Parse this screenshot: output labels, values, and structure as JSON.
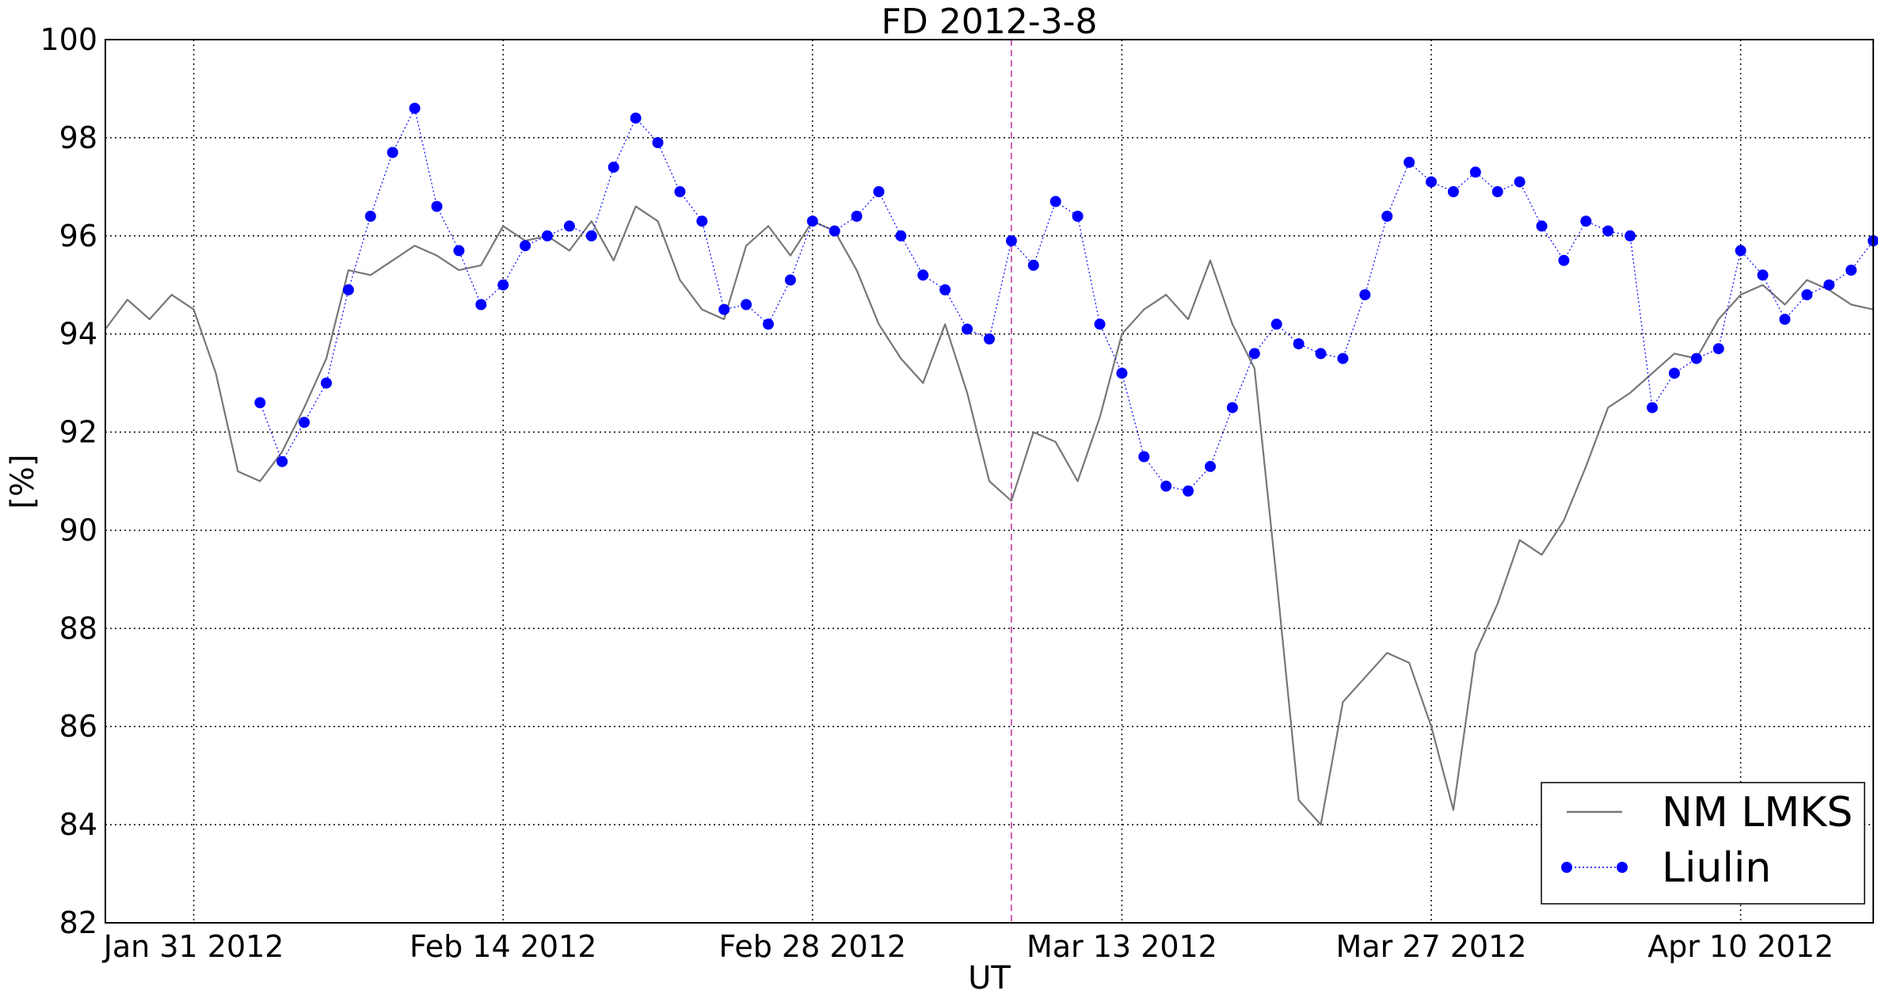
{
  "chart_data": {
    "type": "line",
    "title": "FD 2012-3-8",
    "xlabel": "UT",
    "ylabel": "[%]",
    "x_range": [
      "2012-01-27",
      "2012-04-16"
    ],
    "ylim": [
      82,
      100
    ],
    "yticks": [
      82,
      84,
      86,
      88,
      90,
      92,
      94,
      96,
      98,
      100
    ],
    "xticks": [
      {
        "date": "2012-01-31",
        "label": "Jan 31 2012"
      },
      {
        "date": "2012-02-14",
        "label": "Feb 14 2012"
      },
      {
        "date": "2012-02-28",
        "label": "Feb 28 2012"
      },
      {
        "date": "2012-03-13",
        "label": "Mar 13 2012"
      },
      {
        "date": "2012-03-27",
        "label": "Mar 27 2012"
      },
      {
        "date": "2012-04-10",
        "label": "Apr 10 2012"
      }
    ],
    "grid": true,
    "legend_position": "bottom-right",
    "event_marker": {
      "date": "2012-03-08",
      "color": "#c030a0"
    },
    "series": [
      {
        "name": "NM LMKS",
        "style": "solid-line",
        "color": "#777777",
        "points": [
          [
            "2012-01-27",
            94.1
          ],
          [
            "2012-01-28",
            94.7
          ],
          [
            "2012-01-29",
            94.3
          ],
          [
            "2012-01-30",
            94.8
          ],
          [
            "2012-01-31",
            94.5
          ],
          [
            "2012-02-01",
            93.2
          ],
          [
            "2012-02-02",
            91.2
          ],
          [
            "2012-02-03",
            91.0
          ],
          [
            "2012-02-04",
            91.6
          ],
          [
            "2012-02-05",
            92.5
          ],
          [
            "2012-02-06",
            93.5
          ],
          [
            "2012-02-07",
            95.3
          ],
          [
            "2012-02-08",
            95.2
          ],
          [
            "2012-02-09",
            95.5
          ],
          [
            "2012-02-10",
            95.8
          ],
          [
            "2012-02-11",
            95.6
          ],
          [
            "2012-02-12",
            95.3
          ],
          [
            "2012-02-13",
            95.4
          ],
          [
            "2012-02-14",
            96.2
          ],
          [
            "2012-02-15",
            95.9
          ],
          [
            "2012-02-16",
            96.0
          ],
          [
            "2012-02-17",
            95.7
          ],
          [
            "2012-02-18",
            96.3
          ],
          [
            "2012-02-19",
            95.5
          ],
          [
            "2012-02-20",
            96.6
          ],
          [
            "2012-02-21",
            96.3
          ],
          [
            "2012-02-22",
            95.1
          ],
          [
            "2012-02-23",
            94.5
          ],
          [
            "2012-02-24",
            94.3
          ],
          [
            "2012-02-25",
            95.8
          ],
          [
            "2012-02-26",
            96.2
          ],
          [
            "2012-02-27",
            95.6
          ],
          [
            "2012-02-28",
            96.3
          ],
          [
            "2012-02-29",
            96.1
          ],
          [
            "2012-03-01",
            95.3
          ],
          [
            "2012-03-02",
            94.2
          ],
          [
            "2012-03-03",
            93.5
          ],
          [
            "2012-03-04",
            93.0
          ],
          [
            "2012-03-05",
            94.2
          ],
          [
            "2012-03-06",
            92.8
          ],
          [
            "2012-03-07",
            91.0
          ],
          [
            "2012-03-08",
            90.6
          ],
          [
            "2012-03-09",
            92.0
          ],
          [
            "2012-03-10",
            91.8
          ],
          [
            "2012-03-11",
            91.0
          ],
          [
            "2012-03-12",
            92.3
          ],
          [
            "2012-03-13",
            94.0
          ],
          [
            "2012-03-14",
            94.5
          ],
          [
            "2012-03-15",
            94.8
          ],
          [
            "2012-03-16",
            94.3
          ],
          [
            "2012-03-17",
            95.5
          ],
          [
            "2012-03-18",
            94.2
          ],
          [
            "2012-03-19",
            93.3
          ],
          [
            "2012-03-20",
            89.0
          ],
          [
            "2012-03-21",
            84.5
          ],
          [
            "2012-03-22",
            84.0
          ],
          [
            "2012-03-23",
            86.5
          ],
          [
            "2012-03-24",
            87.0
          ],
          [
            "2012-03-25",
            87.5
          ],
          [
            "2012-03-26",
            87.3
          ],
          [
            "2012-03-27",
            86.0
          ],
          [
            "2012-03-28",
            84.3
          ],
          [
            "2012-03-29",
            87.5
          ],
          [
            "2012-03-30",
            88.5
          ],
          [
            "2012-03-31",
            89.8
          ],
          [
            "2012-04-01",
            89.5
          ],
          [
            "2012-04-02",
            90.2
          ],
          [
            "2012-04-03",
            91.3
          ],
          [
            "2012-04-04",
            92.5
          ],
          [
            "2012-04-05",
            92.8
          ],
          [
            "2012-04-06",
            93.2
          ],
          [
            "2012-04-07",
            93.6
          ],
          [
            "2012-04-08",
            93.5
          ],
          [
            "2012-04-09",
            94.3
          ],
          [
            "2012-04-10",
            94.8
          ],
          [
            "2012-04-11",
            95.0
          ],
          [
            "2012-04-12",
            94.6
          ],
          [
            "2012-04-13",
            95.1
          ],
          [
            "2012-04-14",
            94.9
          ],
          [
            "2012-04-15",
            94.6
          ],
          [
            "2012-04-16",
            94.5
          ]
        ]
      },
      {
        "name": "Liulin",
        "style": "dotted-line-markers",
        "color": "#0000ff",
        "points": [
          [
            "2012-02-03",
            92.6
          ],
          [
            "2012-02-04",
            91.4
          ],
          [
            "2012-02-05",
            92.2
          ],
          [
            "2012-02-06",
            93.0
          ],
          [
            "2012-02-07",
            94.9
          ],
          [
            "2012-02-08",
            96.4
          ],
          [
            "2012-02-09",
            97.7
          ],
          [
            "2012-02-10",
            98.6
          ],
          [
            "2012-02-11",
            96.6
          ],
          [
            "2012-02-12",
            95.7
          ],
          [
            "2012-02-13",
            94.6
          ],
          [
            "2012-02-14",
            95.0
          ],
          [
            "2012-02-15",
            95.8
          ],
          [
            "2012-02-16",
            96.0
          ],
          [
            "2012-02-17",
            96.2
          ],
          [
            "2012-02-18",
            96.0
          ],
          [
            "2012-02-19",
            97.4
          ],
          [
            "2012-02-20",
            98.4
          ],
          [
            "2012-02-21",
            97.9
          ],
          [
            "2012-02-22",
            96.9
          ],
          [
            "2012-02-23",
            96.3
          ],
          [
            "2012-02-24",
            94.5
          ],
          [
            "2012-02-25",
            94.6
          ],
          [
            "2012-02-26",
            94.2
          ],
          [
            "2012-02-27",
            95.1
          ],
          [
            "2012-02-28",
            96.3
          ],
          [
            "2012-02-29",
            96.1
          ],
          [
            "2012-03-01",
            96.4
          ],
          [
            "2012-03-02",
            96.9
          ],
          [
            "2012-03-03",
            96.0
          ],
          [
            "2012-03-04",
            95.2
          ],
          [
            "2012-03-05",
            94.9
          ],
          [
            "2012-03-06",
            94.1
          ],
          [
            "2012-03-07",
            93.9
          ],
          [
            "2012-03-08",
            95.9
          ],
          [
            "2012-03-09",
            95.4
          ],
          [
            "2012-03-10",
            96.7
          ],
          [
            "2012-03-11",
            96.4
          ],
          [
            "2012-03-12",
            94.2
          ],
          [
            "2012-03-13",
            93.2
          ],
          [
            "2012-03-14",
            91.5
          ],
          [
            "2012-03-15",
            90.9
          ],
          [
            "2012-03-16",
            90.8
          ],
          [
            "2012-03-17",
            91.3
          ],
          [
            "2012-03-18",
            92.5
          ],
          [
            "2012-03-19",
            93.6
          ],
          [
            "2012-03-20",
            94.2
          ],
          [
            "2012-03-21",
            93.8
          ],
          [
            "2012-03-22",
            93.6
          ],
          [
            "2012-03-23",
            93.5
          ],
          [
            "2012-03-24",
            94.8
          ],
          [
            "2012-03-25",
            96.4
          ],
          [
            "2012-03-26",
            97.5
          ],
          [
            "2012-03-27",
            97.1
          ],
          [
            "2012-03-28",
            96.9
          ],
          [
            "2012-03-29",
            97.3
          ],
          [
            "2012-03-30",
            96.9
          ],
          [
            "2012-03-31",
            97.1
          ],
          [
            "2012-04-01",
            96.2
          ],
          [
            "2012-04-02",
            95.5
          ],
          [
            "2012-04-03",
            96.3
          ],
          [
            "2012-04-04",
            96.1
          ],
          [
            "2012-04-05",
            96.0
          ],
          [
            "2012-04-06",
            92.5
          ],
          [
            "2012-04-07",
            93.2
          ],
          [
            "2012-04-08",
            93.5
          ],
          [
            "2012-04-09",
            93.7
          ],
          [
            "2012-04-10",
            95.7
          ],
          [
            "2012-04-11",
            95.2
          ],
          [
            "2012-04-12",
            94.3
          ],
          [
            "2012-04-13",
            94.8
          ],
          [
            "2012-04-14",
            95.0
          ],
          [
            "2012-04-15",
            95.3
          ],
          [
            "2012-04-16",
            95.9
          ]
        ]
      }
    ]
  }
}
